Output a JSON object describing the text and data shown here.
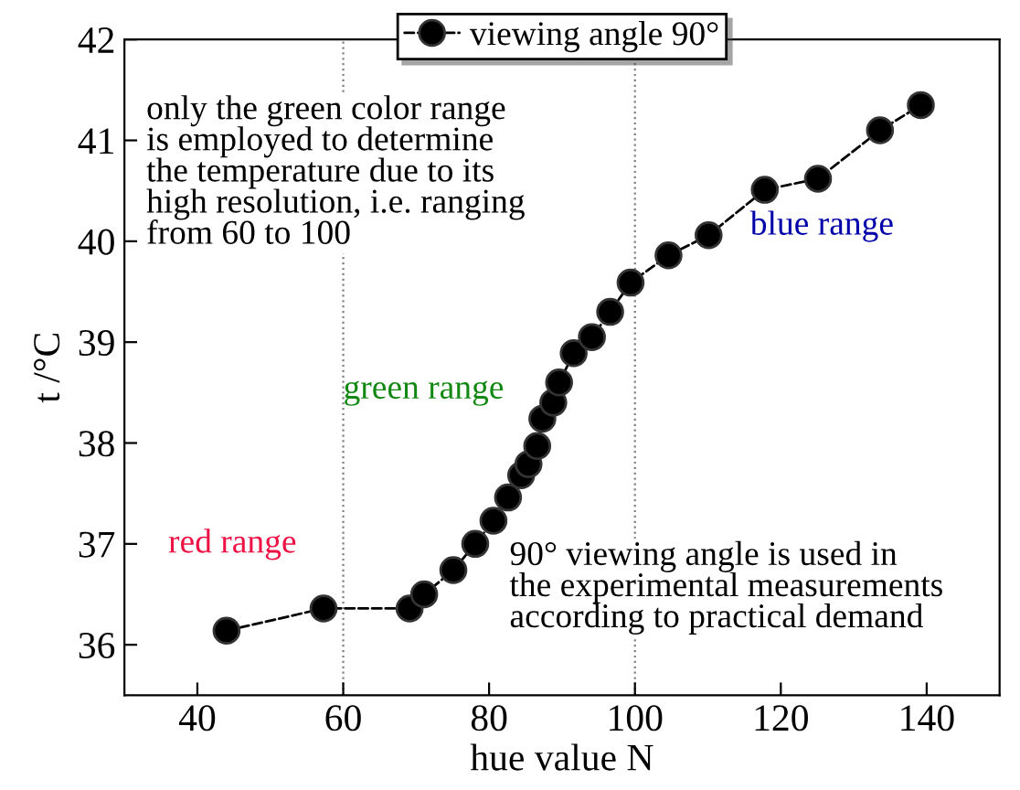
{
  "chart_data": {
    "type": "line",
    "xlabel": "hue value N",
    "ylabel": "t /°C",
    "xlim": [
      30,
      150
    ],
    "xticks": [
      40,
      60,
      80,
      100,
      120,
      140
    ],
    "ylim": [
      35.5,
      42
    ],
    "yticks": [
      36,
      37,
      38,
      39,
      40,
      41,
      42
    ],
    "series": [
      {
        "name": "viewing angle 90°",
        "color": "#000000",
        "x": [
          44,
          57.3,
          69.1,
          71.1,
          75.1,
          78.1,
          80.6,
          82.6,
          84.4,
          85.4,
          86.6,
          87.3,
          88.8,
          89.6,
          91.6,
          94.1,
          96.6,
          99.4,
          104.6,
          110.1,
          117.8,
          125.1,
          133.6,
          139.2
        ],
        "values": [
          36.14,
          36.36,
          36.36,
          36.5,
          36.74,
          37.0,
          37.23,
          37.46,
          37.68,
          37.79,
          37.97,
          38.24,
          38.4,
          38.6,
          38.89,
          39.05,
          39.3,
          39.59,
          39.86,
          40.06,
          40.51,
          40.62,
          41.1,
          41.35
        ]
      }
    ],
    "marker": "circle",
    "line_style": "dashed",
    "legend": "top",
    "grid": false,
    "ref_lines": [
      {
        "axis": "x",
        "value": 60,
        "color": "#808080",
        "line_style": "dotted"
      },
      {
        "axis": "x",
        "value": 100,
        "color": "#808080",
        "line_style": "dotted"
      }
    ],
    "annotations": [
      "only the green color range\nis employed to determine\nthe temperature due to its\nhigh resolution, i.e. ranging\nfrom 60 to 100",
      "red range",
      "green range",
      "blue range",
      "90° viewing angle is used in\nthe experimental measurements\naccording to practical demand"
    ]
  }
}
